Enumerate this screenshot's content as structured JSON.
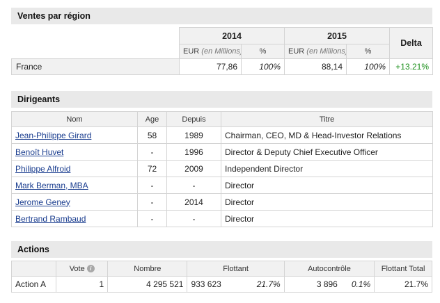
{
  "ventes": {
    "title": "Ventes par région",
    "year1": "2014",
    "year2": "2015",
    "delta_label": "Delta",
    "unit_prefix": "EUR",
    "unit_note": "(en Millions)",
    "pct_label": "%",
    "row": {
      "region": "France",
      "v2014": "77,86",
      "p2014": "100%",
      "v2015": "88,14",
      "p2015": "100%",
      "delta": "+13.21%"
    },
    "colors": {
      "positive": "#1a8f1a"
    }
  },
  "dirigeants": {
    "title": "Dirigeants",
    "headers": {
      "nom": "Nom",
      "age": "Age",
      "depuis": "Depuis",
      "titre": "Titre"
    },
    "rows": [
      {
        "nom": "Jean-Philippe Girard",
        "age": "58",
        "depuis": "1989",
        "titre": "Chairman, CEO, MD & Head-Investor Relations"
      },
      {
        "nom": "Benoît Huvet",
        "age": "-",
        "depuis": "1996",
        "titre": "Director & Deputy Chief Executive Officer"
      },
      {
        "nom": "Philippe Alfroid",
        "age": "72",
        "depuis": "2009",
        "titre": "Independent Director"
      },
      {
        "nom": "Mark Berman, MBA",
        "age": "-",
        "depuis": "-",
        "titre": "Director"
      },
      {
        "nom": "Jerome Geney",
        "age": "-",
        "depuis": "2014",
        "titre": "Director"
      },
      {
        "nom": "Bertrand Rambaud",
        "age": "-",
        "depuis": "-",
        "titre": "Director"
      }
    ]
  },
  "actions": {
    "title": "Actions",
    "headers": {
      "vote": "Vote",
      "nombre": "Nombre",
      "flottant": "Flottant",
      "autocontrole": "Autocontrôle",
      "flottant_total": "Flottant Total"
    },
    "info_icon_glyph": "i",
    "row": {
      "label": "Action A",
      "vote": "1",
      "nombre": "4 295 521",
      "flottant": "933 623",
      "flottant_pct": "21.7%",
      "autocontrole": "3 896",
      "autocontrole_pct": "0.1%",
      "flottant_total": "21.7%"
    }
  }
}
